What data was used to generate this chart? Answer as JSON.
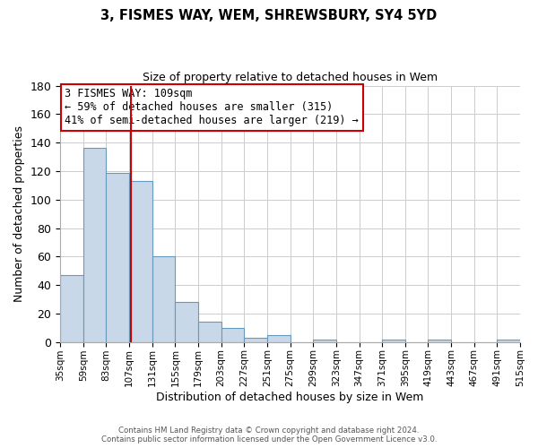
{
  "title": "3, FISMES WAY, WEM, SHREWSBURY, SY4 5YD",
  "subtitle": "Size of property relative to detached houses in Wem",
  "xlabel": "Distribution of detached houses by size in Wem",
  "ylabel": "Number of detached properties",
  "bin_edges": [
    35,
    59,
    83,
    107,
    131,
    155,
    179,
    203,
    227,
    251,
    275,
    299,
    323,
    347,
    371,
    395,
    419,
    443,
    467,
    491,
    515
  ],
  "counts": [
    47,
    136,
    119,
    113,
    60,
    28,
    14,
    10,
    3,
    5,
    0,
    2,
    0,
    0,
    2,
    0,
    2,
    0,
    0,
    2
  ],
  "tick_labels": [
    "35sqm",
    "59sqm",
    "83sqm",
    "107sqm",
    "131sqm",
    "155sqm",
    "179sqm",
    "203sqm",
    "227sqm",
    "251sqm",
    "275sqm",
    "299sqm",
    "323sqm",
    "347sqm",
    "371sqm",
    "395sqm",
    "419sqm",
    "443sqm",
    "467sqm",
    "491sqm",
    "515sqm"
  ],
  "ylim": [
    0,
    180
  ],
  "yticks": [
    0,
    20,
    40,
    60,
    80,
    100,
    120,
    140,
    160,
    180
  ],
  "property_size": 109,
  "bar_color": "#c8d8e8",
  "bar_edge_color": "#6699bb",
  "vline_color": "#cc0000",
  "annotation_box_color": "#cc0000",
  "annotation_text_line1": "3 FISMES WAY: 109sqm",
  "annotation_text_line2": "← 59% of detached houses are smaller (315)",
  "annotation_text_line3": "41% of semi-detached houses are larger (219) →",
  "footer_line1": "Contains HM Land Registry data © Crown copyright and database right 2024.",
  "footer_line2": "Contains public sector information licensed under the Open Government Licence v3.0.",
  "bg_color": "#ffffff",
  "grid_color": "#cccccc"
}
